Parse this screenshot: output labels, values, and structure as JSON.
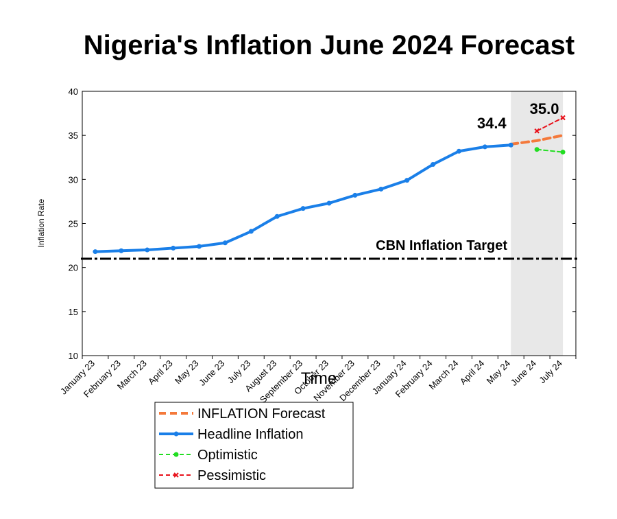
{
  "chart_data": {
    "type": "line",
    "title": "Nigeria's Inflation June 2024 Forecast",
    "xlabel": "Time",
    "ylabel": "Inflation Rate",
    "ylim": [
      10,
      40
    ],
    "yticks": [
      10,
      15,
      20,
      25,
      30,
      35,
      40
    ],
    "grid": false,
    "legend_position": "bottom-left",
    "categories": [
      "January 23",
      "February 23",
      "March 23",
      "April 23",
      "May 23",
      "June 23",
      "July 23",
      "August 23",
      "September 23",
      "October 23",
      "November 23",
      "December 23",
      "January 24",
      "February 24",
      "March 24",
      "April 24",
      "May 24",
      "June 24",
      "July 24"
    ],
    "shaded_region": {
      "from": "May 24",
      "to": "July 24",
      "color": "#e8e8e8"
    },
    "reference_line": {
      "label": "CBN Inflation Target",
      "value": 21,
      "color": "#000000"
    },
    "series": [
      {
        "name": "INFLATION Forecast",
        "color": "#f4793b",
        "style": "dashed",
        "marker": "none",
        "x": [
          "May 24",
          "June 24",
          "July 24"
        ],
        "values": [
          34.0,
          34.4,
          35.0
        ]
      },
      {
        "name": "Headline Inflation",
        "color": "#1a7fe8",
        "style": "solid",
        "marker": "circle",
        "x": [
          "January 23",
          "February 23",
          "March 23",
          "April 23",
          "May 23",
          "June 23",
          "July 23",
          "August 23",
          "September 23",
          "October 23",
          "November 23",
          "December 23",
          "January 24",
          "February 24",
          "March 24",
          "April 24",
          "May 24"
        ],
        "values": [
          21.8,
          21.9,
          22.0,
          22.2,
          22.4,
          22.8,
          24.1,
          25.8,
          26.7,
          27.3,
          28.2,
          28.9,
          29.9,
          31.7,
          33.2,
          33.7,
          33.9
        ]
      },
      {
        "name": "Optimistic",
        "color": "#22dd22",
        "style": "dashed",
        "marker": "circle",
        "x": [
          "June 24",
          "July 24"
        ],
        "values": [
          33.4,
          33.1
        ]
      },
      {
        "name": "Pessimistic",
        "color": "#e8101a",
        "style": "dashed",
        "marker": "x",
        "x": [
          "June 24",
          "July 24"
        ],
        "values": [
          35.5,
          37.0
        ]
      }
    ],
    "annotations": [
      {
        "text": "34.4",
        "x": "May 24",
        "y": 34.4
      },
      {
        "text": "35.0",
        "x": "July 24",
        "y": 35.0
      }
    ]
  }
}
